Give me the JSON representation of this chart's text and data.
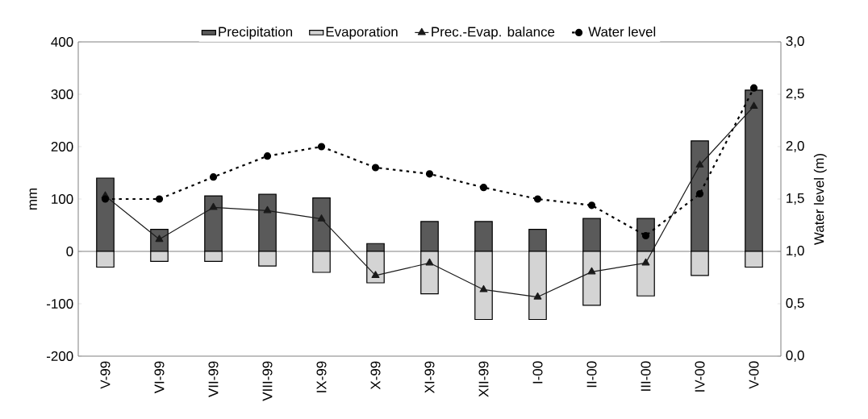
{
  "chart_data": {
    "type": "bar",
    "categories": [
      "V-99",
      "VI-99",
      "VII-99",
      "VIII-99",
      "IX-99",
      "X-99",
      "XI-99",
      "XII-99",
      "I-00",
      "II-00",
      "III-00",
      "IV-00",
      "V-00"
    ],
    "series": [
      {
        "name": "Precipitation",
        "color": "#5a5a5a",
        "values": [
          140,
          42,
          106,
          109,
          102,
          15,
          57,
          57,
          42,
          63,
          63,
          211,
          308
        ]
      },
      {
        "name": "Evaporation",
        "color": "#d4d4d4",
        "values": [
          -30,
          -19,
          -19,
          -28,
          -40,
          -60,
          -81,
          -130,
          -130,
          -103,
          -85,
          -46,
          -30
        ]
      },
      {
        "name": "Prec.-Evap. balance",
        "type": "line",
        "color": "#1a1a1a",
        "marker": "triangle",
        "line_style": "solid",
        "values": [
          106,
          23,
          84,
          78,
          62,
          -46,
          -22,
          -73,
          -87,
          -39,
          -22,
          165,
          277
        ]
      },
      {
        "name": "Water level",
        "type": "line",
        "axis": "y2",
        "color": "#000000",
        "marker": "circle",
        "line_style": "dotted",
        "values": [
          1.5,
          1.5,
          1.71,
          1.91,
          2.0,
          1.8,
          1.74,
          1.61,
          1.5,
          1.44,
          1.15,
          1.55,
          2.56
        ]
      }
    ],
    "ylabel": "mm",
    "y2label": "Water level (m)",
    "ylim": [
      -200,
      400
    ],
    "yticks": [
      -200,
      -100,
      0,
      100,
      200,
      300,
      400
    ],
    "y2lim": [
      0,
      3
    ],
    "y2ticks": [
      {
        "value": 0,
        "label": "0,0"
      },
      {
        "value": 0.5,
        "label": "0,5"
      },
      {
        "value": 1,
        "label": "1,0"
      },
      {
        "value": 1.5,
        "label": "1,5"
      },
      {
        "value": 2,
        "label": "2,0"
      },
      {
        "value": 2.5,
        "label": "2,5"
      },
      {
        "value": 3,
        "label": "3,0"
      }
    ],
    "legend": "top",
    "stacked": true
  }
}
